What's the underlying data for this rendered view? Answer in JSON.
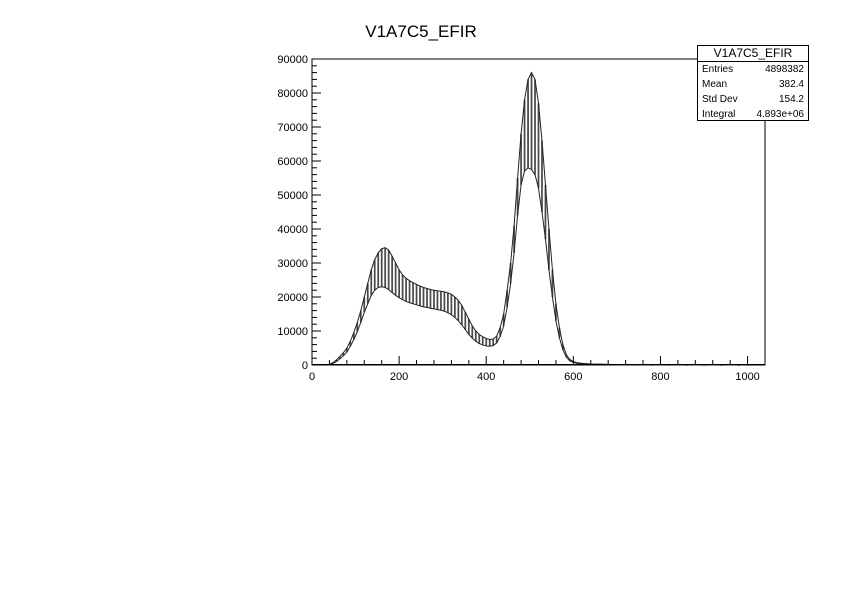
{
  "chart_data": {
    "type": "bar",
    "title": "V1A7C5_EFIR",
    "xlabel": "",
    "ylabel": "",
    "xlim": [
      0,
      1040
    ],
    "ylim": [
      0,
      90000
    ],
    "xticks": [
      0,
      200,
      400,
      600,
      800,
      1000
    ],
    "yticks": [
      0,
      10000,
      20000,
      30000,
      40000,
      50000,
      60000,
      70000,
      80000,
      90000
    ],
    "grid": false,
    "legend": "top-right",
    "bin_width": 4,
    "series": [
      {
        "name": "V1A7C5_EFIR",
        "x": [
          40,
          48,
          56,
          64,
          72,
          80,
          88,
          96,
          104,
          112,
          120,
          128,
          136,
          144,
          152,
          160,
          168,
          176,
          184,
          192,
          200,
          208,
          216,
          224,
          232,
          240,
          248,
          256,
          264,
          272,
          280,
          288,
          296,
          304,
          312,
          320,
          328,
          336,
          344,
          352,
          360,
          368,
          376,
          384,
          392,
          400,
          408,
          416,
          424,
          432,
          440,
          448,
          456,
          464,
          472,
          480,
          488,
          496,
          504,
          512,
          520,
          528,
          536,
          544,
          552,
          560,
          568,
          576,
          584,
          592,
          600,
          608,
          616,
          624,
          632,
          640,
          660,
          680,
          700,
          740,
          780,
          820,
          860,
          900,
          940,
          980,
          1000
        ],
        "high": [
          150,
          700,
          1500,
          2500,
          3600,
          5000,
          7000,
          9500,
          12500,
          16000,
          20000,
          24000,
          28000,
          31000,
          33000,
          34200,
          34500,
          33800,
          32000,
          30000,
          28000,
          26500,
          25500,
          24800,
          24200,
          23700,
          23200,
          22800,
          22500,
          22200,
          22000,
          21800,
          21700,
          21500,
          21200,
          20800,
          20000,
          19000,
          17500,
          15500,
          13500,
          11500,
          10000,
          9000,
          8300,
          7800,
          7500,
          7600,
          8500,
          11000,
          15000,
          22000,
          30000,
          41000,
          55000,
          68000,
          78000,
          84000,
          86000,
          84000,
          77000,
          66000,
          53000,
          40000,
          28000,
          18000,
          11000,
          6000,
          3000,
          1600,
          1000,
          700,
          550,
          450,
          400,
          300,
          250,
          180,
          120,
          90,
          80,
          60,
          50,
          40,
          30,
          25,
          20
        ],
        "low": [
          100,
          450,
          1000,
          1800,
          2700,
          3800,
          5500,
          7500,
          9800,
          12500,
          15500,
          18000,
          20500,
          22000,
          22800,
          23000,
          22800,
          22200,
          21300,
          20500,
          19800,
          19200,
          18700,
          18300,
          18000,
          17700,
          17400,
          17100,
          16900,
          16700,
          16500,
          16300,
          16100,
          15800,
          15400,
          14800,
          14000,
          13000,
          11800,
          10400,
          9000,
          7900,
          7000,
          6300,
          5900,
          5600,
          5500,
          5700,
          6500,
          8400,
          11500,
          17000,
          24000,
          33000,
          44000,
          53000,
          57000,
          58000,
          57500,
          56000,
          52000,
          45000,
          37000,
          28000,
          20000,
          13000,
          8000,
          4500,
          2300,
          1200,
          750,
          500,
          400,
          330,
          280,
          220,
          180,
          130,
          90,
          65,
          55,
          45,
          35,
          30,
          22,
          18,
          15
        ]
      }
    ],
    "stats": {
      "name": "V1A7C5_EFIR",
      "rows": [
        {
          "label": "Entries",
          "value": "4898382"
        },
        {
          "label": "Mean",
          "value": "382.4"
        },
        {
          "label": "Std Dev",
          "value": "154.2"
        },
        {
          "label": "Integral",
          "value": "4.893e+06"
        }
      ]
    }
  }
}
